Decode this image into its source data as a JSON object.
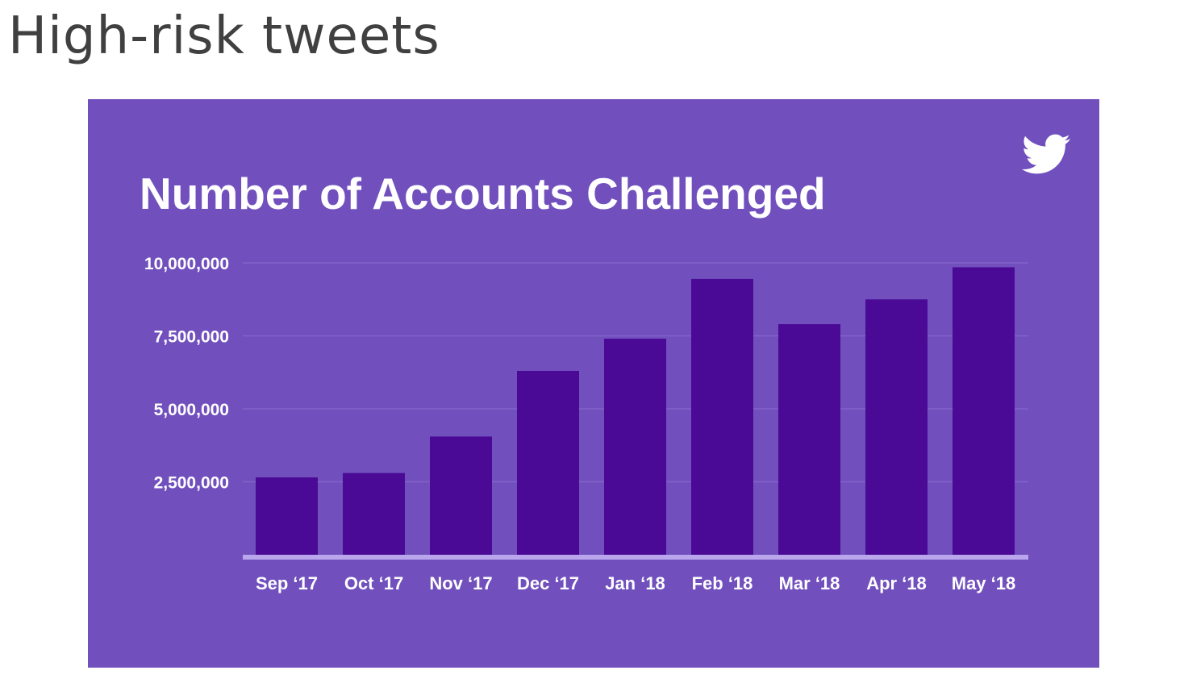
{
  "slide": {
    "title": "High-risk tweets"
  },
  "logo": {
    "icon": "twitter-bird-icon"
  },
  "colors": {
    "panel": "#7150BE",
    "bar": "#4A0A96",
    "grid": "#8163C8",
    "axis": "#B9A6EC"
  },
  "chart_data": {
    "type": "bar",
    "title": "Number of Accounts Challenged",
    "xlabel": "",
    "ylabel": "",
    "categories": [
      "Sep ‘17",
      "Oct ‘17",
      "Nov ‘17",
      "Dec ‘17",
      "Jan ‘18",
      "Feb ‘18",
      "Mar ‘18",
      "Apr ‘18",
      "May ‘18"
    ],
    "values": [
      2650000,
      2800000,
      4050000,
      6300000,
      7400000,
      9450000,
      7900000,
      8750000,
      9850000
    ],
    "ylim": [
      0,
      10000000
    ],
    "yticks": [
      2500000,
      5000000,
      7500000,
      10000000
    ],
    "ytick_labels": [
      "2,500,000",
      "5,000,000",
      "7,500,000",
      "10,000,000"
    ],
    "grid": true,
    "legend": "none"
  }
}
